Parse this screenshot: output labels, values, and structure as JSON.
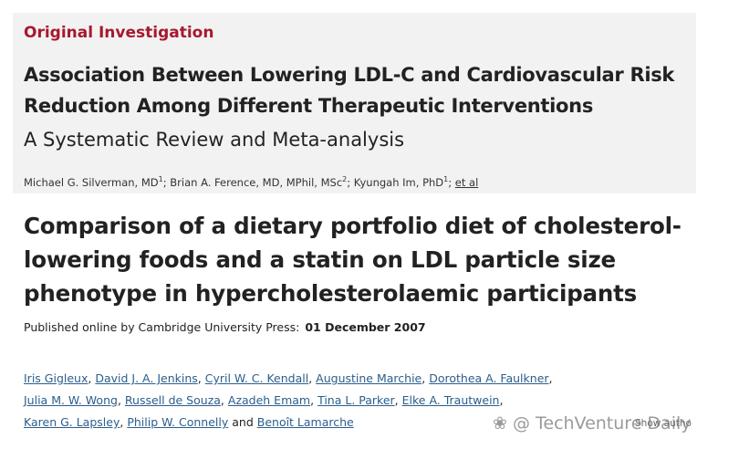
{
  "article1": {
    "label": "Original Investigation",
    "title_lines": [
      "Association Between Lowering LDL-C and Cardiovascular Risk",
      "Reduction Among Different Therapeutic Interventions"
    ],
    "subtitle": "A Systematic Review and Meta-analysis",
    "authors": [
      {
        "name": "Michael G. Silverman, MD",
        "sup": "1"
      },
      {
        "name": "Brian A. Ference, MD, MPhil, MSc",
        "sup": "2"
      },
      {
        "name": "Kyungah Im, PhD",
        "sup": "1"
      }
    ],
    "separator": ";",
    "et_al": "et al"
  },
  "article2": {
    "title_lines": [
      "Comparison of a dietary portfolio diet of cholesterol-",
      "lowering foods and a statin on LDL particle size",
      "phenotype in hypercholesterolaemic participants"
    ],
    "published_label": "Published online by Cambridge University Press:",
    "published_date": "01 December 2007",
    "author_lines": [
      [
        "Iris Gigleux",
        "David J. A. Jenkins",
        "Cyril W. C. Kendall",
        "Augustine Marchie",
        "Dorothea A. Faulkner"
      ],
      [
        "Julia M. W. Wong",
        "Russell de Souza",
        "Azadeh Emam",
        "Tina L. Parker",
        "Elke A. Trautwein"
      ],
      [
        "Karen G. Lapsley",
        "Philip W. Connelly",
        "Benoît Lamarche"
      ]
    ],
    "separator": ",",
    "conjunction": "and",
    "show_authors": "Show autho"
  },
  "watermark": "TechVenture Daily"
}
